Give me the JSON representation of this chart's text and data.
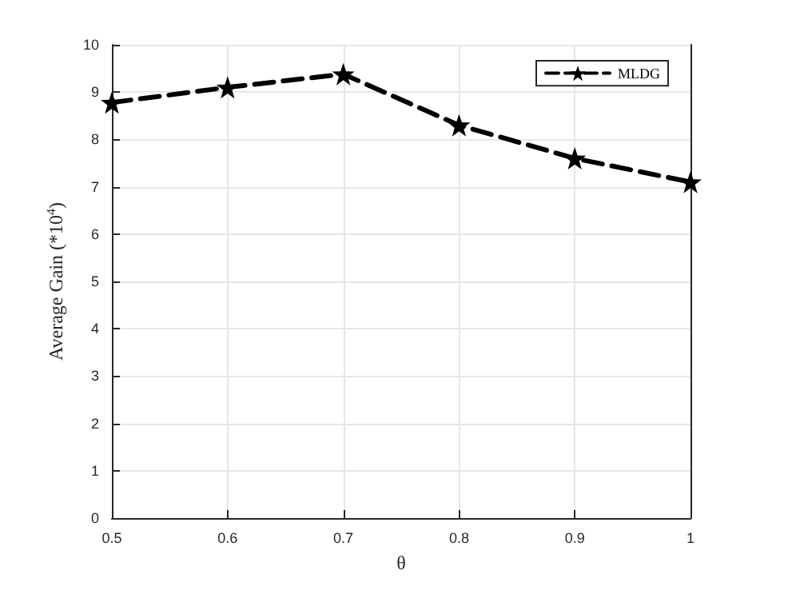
{
  "chart_data": {
    "type": "line",
    "xlabel": "θ",
    "ylabel": "Average Gain (*10$^{4}$)",
    "x": [
      0.5,
      0.6,
      0.7,
      0.8,
      0.9,
      1.0
    ],
    "series": [
      {
        "name": "MLDG",
        "color": "#000000",
        "values": [
          8.78,
          9.1,
          9.38,
          8.3,
          7.6,
          7.1
        ]
      }
    ],
    "xlim": [
      0.5,
      1
    ],
    "xticks": [
      0.5,
      0.6,
      0.7,
      0.8,
      0.9,
      1
    ],
    "ylim": [
      0,
      10
    ],
    "yticks": [
      0,
      1,
      2,
      3,
      4,
      5,
      6,
      7,
      8,
      9,
      10
    ],
    "grid": true,
    "legend": "top right",
    "marker": "star",
    "line_style": "dashed"
  }
}
